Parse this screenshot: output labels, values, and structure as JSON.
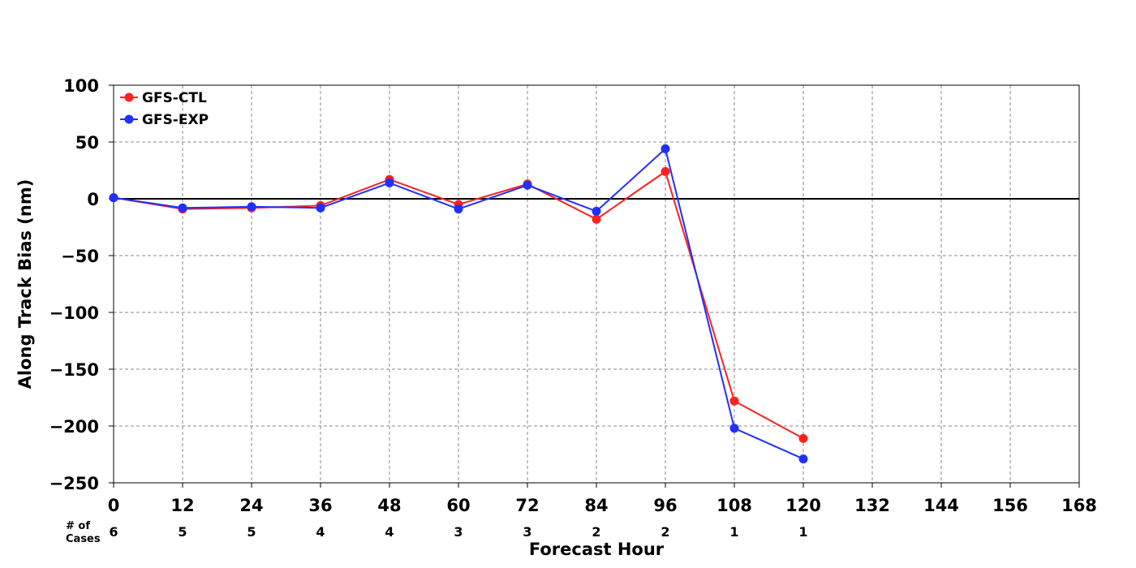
{
  "chart_data": {
    "type": "line",
    "title": "",
    "xlabel": "Forecast Hour",
    "ylabel": "Along Track Bias (nm)",
    "xlim": [
      0,
      168
    ],
    "ylim": [
      -250,
      100
    ],
    "x_ticks": [
      0,
      12,
      24,
      36,
      48,
      60,
      72,
      84,
      96,
      108,
      120,
      132,
      144,
      156,
      168
    ],
    "y_ticks": [
      100,
      50,
      0,
      -50,
      -100,
      -150,
      -200,
      -250
    ],
    "y_tick_labels": [
      "100",
      "50",
      "0",
      "−50",
      "−100",
      "−150",
      "−200",
      "−250"
    ],
    "grid": true,
    "legend_position": "top-left",
    "zero_line": true,
    "x": [
      0,
      12,
      24,
      36,
      48,
      60,
      72,
      84,
      96,
      108,
      120
    ],
    "series": [
      {
        "name": "GFS-CTL",
        "color": "#ff2020",
        "values": [
          1,
          -9,
          -8,
          -6,
          17,
          -5,
          13,
          -18,
          24,
          -178,
          -211
        ]
      },
      {
        "name": "GFS-EXP",
        "color": "#2030ff",
        "values": [
          1,
          -8,
          -7,
          -8,
          14,
          -9,
          12,
          -11,
          44,
          -202,
          -229
        ]
      }
    ],
    "cases": {
      "label_line1": "# of",
      "label_line2": "Cases",
      "x": [
        0,
        12,
        24,
        36,
        48,
        60,
        72,
        84,
        96,
        108,
        120
      ],
      "values": [
        "6",
        "5",
        "5",
        "4",
        "4",
        "3",
        "3",
        "2",
        "2",
        "1",
        "1"
      ]
    }
  }
}
